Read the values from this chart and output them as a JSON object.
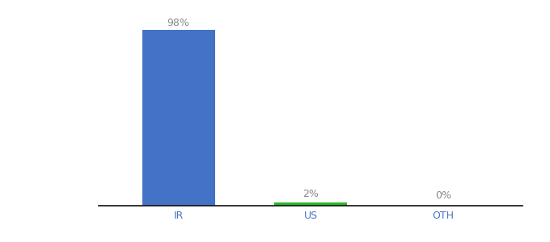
{
  "categories": [
    "IR",
    "US",
    "OTH"
  ],
  "values": [
    98,
    2,
    0
  ],
  "bar_colors": [
    "#4472c4",
    "#22bb22",
    "#4472c4"
  ],
  "label_color": "#888888",
  "labels": [
    "98%",
    "2%",
    "0%"
  ],
  "ylim": [
    0,
    108
  ],
  "background_color": "#ffffff",
  "bar_width": 0.55,
  "font_size": 9,
  "tick_color": "#4472c4",
  "axis_line_color": "#111111",
  "figsize": [
    6.8,
    3.0
  ],
  "dpi": 100
}
